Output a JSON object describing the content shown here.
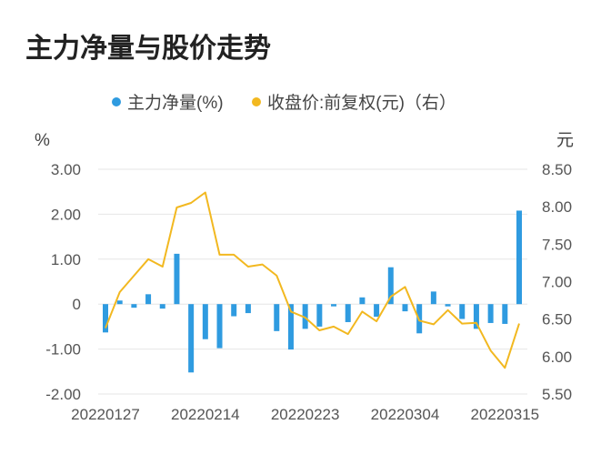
{
  "chart_data": {
    "type": "bar+line",
    "title": "主力净量与股价走势",
    "left_unit": "%",
    "right_unit": "元",
    "legend": [
      "主力净量(%)",
      "收盘价:前复权(元)（右）"
    ],
    "colors": {
      "bar": "#2f9be0",
      "line": "#f2b820"
    },
    "x_tick_labels": [
      "20220127",
      "20220214",
      "20220223",
      "20220304",
      "20220315"
    ],
    "left_axis": {
      "min": -2.0,
      "max": 3.0,
      "ticks": [
        "3.00",
        "2.00",
        "1.00",
        "0",
        "-1.00",
        "-2.00"
      ]
    },
    "right_axis": {
      "min": 5.5,
      "max": 8.5,
      "ticks": [
        "8.50",
        "8.00",
        "7.50",
        "7.00",
        "6.50",
        "6.00",
        "5.50"
      ]
    },
    "series": [
      {
        "name": "主力净量(%)",
        "type": "bar",
        "values": [
          -0.63,
          0.08,
          -0.08,
          0.22,
          -0.1,
          1.12,
          -1.52,
          -0.78,
          -0.98,
          -0.27,
          -0.2,
          0.0,
          -0.6,
          -1.01,
          -0.55,
          -0.5,
          -0.05,
          -0.4,
          0.15,
          -0.28,
          0.82,
          -0.16,
          -0.65,
          0.28,
          -0.05,
          -0.33,
          -0.55,
          -0.42,
          -0.44,
          2.08
        ]
      },
      {
        "name": "收盘价:前复权(元)（右）",
        "type": "line",
        "values": [
          6.38,
          6.86,
          7.08,
          7.3,
          7.2,
          7.99,
          8.05,
          8.19,
          7.36,
          7.36,
          7.2,
          7.23,
          7.08,
          6.6,
          6.52,
          6.35,
          6.4,
          6.3,
          6.6,
          6.47,
          6.8,
          6.93,
          6.48,
          6.43,
          6.62,
          6.44,
          6.45,
          6.08,
          5.85,
          6.44
        ]
      }
    ]
  }
}
